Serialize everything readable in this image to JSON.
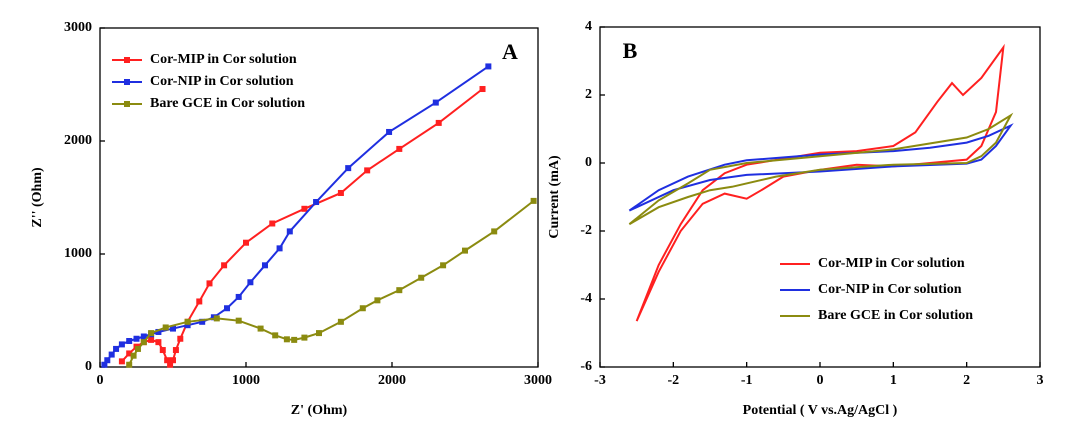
{
  "chart_data": [
    {
      "type": "line",
      "markers": true,
      "annotation": "A",
      "xlabel": "Z' (Ohm)",
      "ylabel": "Z'' (Ohm)",
      "xlim": [
        0,
        3000
      ],
      "ylim": [
        0,
        3000
      ],
      "xticks": [
        0,
        1000,
        2000,
        3000
      ],
      "yticks": [
        0,
        1000,
        2000,
        3000
      ],
      "grid": false,
      "legend": "upper left",
      "series": [
        {
          "name": "Cor-MIP in Cor solution",
          "color": "#ff2020",
          "x": [
            150,
            200,
            250,
            300,
            350,
            400,
            430,
            460,
            480,
            500,
            520,
            550,
            600,
            680,
            750,
            850,
            1000,
            1180,
            1400,
            1650,
            1830,
            2050,
            2320,
            2620
          ],
          "values": [
            50,
            120,
            180,
            220,
            240,
            220,
            150,
            60,
            20,
            60,
            150,
            250,
            400,
            580,
            740,
            900,
            1100,
            1270,
            1400,
            1540,
            1740,
            1930,
            2160,
            2460
          ]
        },
        {
          "name": "Cor-NIP in Cor solution",
          "color": "#1f2fe0",
          "x": [
            30,
            50,
            80,
            110,
            150,
            200,
            250,
            300,
            350,
            400,
            500,
            600,
            700,
            780,
            870,
            950,
            1030,
            1130,
            1230,
            1300,
            1480,
            1700,
            1980,
            2300,
            2660
          ],
          "values": [
            20,
            60,
            110,
            160,
            200,
            230,
            250,
            270,
            290,
            310,
            340,
            370,
            400,
            440,
            520,
            620,
            750,
            900,
            1050,
            1200,
            1460,
            1760,
            2080,
            2340,
            2660
          ]
        },
        {
          "name": "Bare GCE in Cor solution",
          "color": "#8b8b10",
          "x": [
            200,
            230,
            260,
            300,
            350,
            450,
            600,
            800,
            950,
            1100,
            1200,
            1280,
            1330,
            1400,
            1500,
            1650,
            1800,
            1900,
            2050,
            2200,
            2350,
            2500,
            2700,
            2970
          ],
          "values": [
            20,
            100,
            160,
            220,
            300,
            350,
            400,
            430,
            410,
            340,
            280,
            245,
            240,
            260,
            300,
            400,
            520,
            590,
            680,
            790,
            900,
            1030,
            1200,
            1470
          ]
        }
      ]
    },
    {
      "type": "line",
      "markers": false,
      "annotation": "B",
      "xlabel": "Potential ( V vs.Ag/AgCl )",
      "ylabel": "Current (mA)",
      "xlim": [
        -3,
        3
      ],
      "ylim": [
        -6,
        4
      ],
      "xticks": [
        -3,
        -2,
        -1,
        0,
        1,
        2,
        3
      ],
      "yticks": [
        -6,
        -4,
        -2,
        0,
        2,
        4
      ],
      "grid": false,
      "legend": "lower right",
      "series": [
        {
          "name": "Cor-MIP in Cor solution",
          "color": "#ff2020",
          "x": [
            -2.5,
            -2.2,
            -1.9,
            -1.6,
            -1.3,
            -1,
            0,
            0.5,
            1,
            1.3,
            1.6,
            1.8,
            1.95,
            2.2,
            2.5,
            2.4,
            2.2,
            2,
            1.5,
            1,
            0.5,
            0,
            -0.5,
            -0.8,
            -1,
            -1.3,
            -1.6,
            -1.9,
            -2.2,
            -2.5
          ],
          "values": [
            -4.65,
            -3,
            -1.8,
            -0.8,
            -0.3,
            -0.05,
            0.3,
            0.35,
            0.5,
            0.9,
            1.8,
            2.35,
            2,
            2.5,
            3.4,
            1.5,
            0.5,
            0.1,
            0,
            -0.1,
            -0.05,
            -0.2,
            -0.4,
            -0.8,
            -1.05,
            -0.9,
            -1.2,
            -2,
            -3.2,
            -4.65
          ]
        },
        {
          "name": "Cor-NIP in Cor solution",
          "color": "#1f2fe0",
          "x": [
            -2.6,
            -2.2,
            -1.8,
            -1.3,
            -1,
            0,
            1,
            1.5,
            2,
            2.3,
            2.6,
            2.4,
            2.2,
            2,
            1,
            0,
            -1,
            -1.5,
            -2,
            -2.6
          ],
          "values": [
            -1.4,
            -0.8,
            -0.4,
            -0.05,
            0.08,
            0.25,
            0.35,
            0.45,
            0.6,
            0.8,
            1.1,
            0.5,
            0.1,
            -0.02,
            -0.1,
            -0.25,
            -0.35,
            -0.5,
            -0.8,
            -1.4
          ]
        },
        {
          "name": "Bare GCE in Cor solution",
          "color": "#8b8b10",
          "x": [
            -2.6,
            -2.2,
            -1.8,
            -1.5,
            -1,
            0,
            1,
            2,
            2.3,
            2.6,
            2.4,
            2.2,
            2,
            1,
            0,
            -0.6,
            -1.2,
            -1.5,
            -1.8,
            -2.2,
            -2.6
          ],
          "values": [
            -1.8,
            -1.1,
            -0.6,
            -0.2,
            0,
            0.2,
            0.4,
            0.75,
            1,
            1.4,
            0.6,
            0.2,
            0,
            -0.05,
            -0.2,
            -0.4,
            -0.7,
            -0.8,
            -1,
            -1.3,
            -1.8
          ]
        }
      ]
    }
  ]
}
